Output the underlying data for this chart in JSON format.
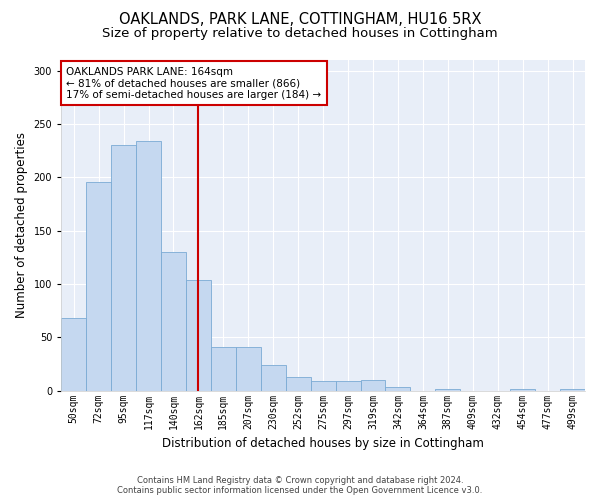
{
  "title": "OAKLANDS, PARK LANE, COTTINGHAM, HU16 5RX",
  "subtitle": "Size of property relative to detached houses in Cottingham",
  "xlabel": "Distribution of detached houses by size in Cottingham",
  "ylabel": "Number of detached properties",
  "categories": [
    "50sqm",
    "72sqm",
    "95sqm",
    "117sqm",
    "140sqm",
    "162sqm",
    "185sqm",
    "207sqm",
    "230sqm",
    "252sqm",
    "275sqm",
    "297sqm",
    "319sqm",
    "342sqm",
    "364sqm",
    "387sqm",
    "409sqm",
    "432sqm",
    "454sqm",
    "477sqm",
    "499sqm"
  ],
  "values": [
    68,
    196,
    230,
    234,
    130,
    104,
    41,
    41,
    24,
    13,
    9,
    9,
    10,
    3,
    0,
    2,
    0,
    0,
    2,
    0,
    2
  ],
  "bar_color": "#c5d8f0",
  "bar_edge_color": "#7aaad4",
  "red_line_index": 5,
  "annotation_line1": "OAKLANDS PARK LANE: 164sqm",
  "annotation_line2": "← 81% of detached houses are smaller (866)",
  "annotation_line3": "17% of semi-detached houses are larger (184) →",
  "annotation_box_color": "#ffffff",
  "annotation_box_edge": "#cc0000",
  "ylim": [
    0,
    310
  ],
  "yticks": [
    0,
    50,
    100,
    150,
    200,
    250,
    300
  ],
  "footer_line1": "Contains HM Land Registry data © Crown copyright and database right 2024.",
  "footer_line2": "Contains public sector information licensed under the Open Government Licence v3.0.",
  "background_color": "#ffffff",
  "plot_bg_color": "#e8eef8",
  "grid_color": "#ffffff",
  "title_fontsize": 10.5,
  "subtitle_fontsize": 9.5,
  "tick_fontsize": 7,
  "ylabel_fontsize": 8.5,
  "xlabel_fontsize": 8.5,
  "footer_fontsize": 6.0
}
